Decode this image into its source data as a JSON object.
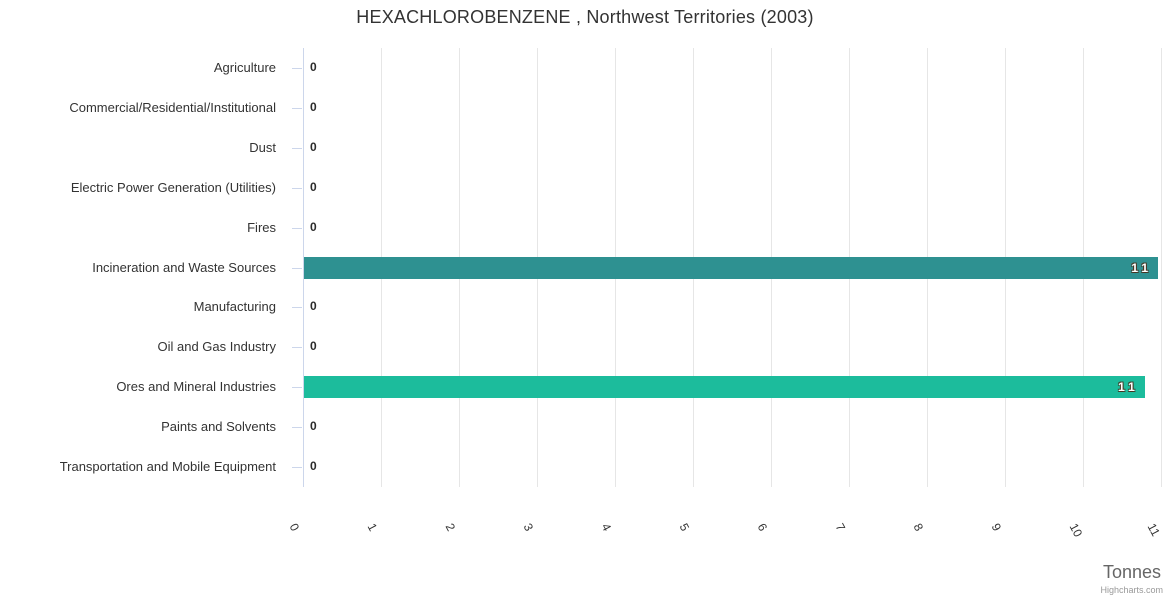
{
  "credit": "Highcharts.com",
  "chart_data": {
    "type": "bar",
    "title": "HEXACHLOROBENZENE , Northwest Territories (2003)",
    "orientation": "horizontal",
    "legend": "none",
    "grid": true,
    "categories": [
      "Agriculture",
      "Commercial/Residential/Institutional",
      "Dust",
      "Electric Power Generation (Utilities)",
      "Fires",
      "Incineration and Waste Sources",
      "Manufacturing",
      "Oil and Gas Industry",
      "Ores and Mineral Industries",
      "Paints and Solvents",
      "Transportation and Mobile Equipment"
    ],
    "values": [
      0,
      0,
      0,
      0,
      0,
      11,
      0,
      0,
      11,
      0,
      0
    ],
    "value_labels": [
      "0",
      "0",
      "0",
      "0",
      "0",
      "11",
      "0",
      "0",
      "11",
      "0",
      "0"
    ],
    "values_estimated_from_bar_length": [
      0,
      0,
      0,
      0,
      0,
      10.95,
      0,
      0,
      10.78,
      0,
      0
    ],
    "point_colors": [
      "",
      "",
      "",
      "",
      "",
      "#2E9191",
      "",
      "",
      "#1CBC9C",
      "",
      ""
    ],
    "xlabel": "Tonnes",
    "ylabel": "",
    "value_axis": {
      "min": 0,
      "max": 11,
      "tick_labels": [
        "0",
        "1",
        "2",
        "3",
        "4",
        "5",
        "6",
        "7",
        "8",
        "9",
        "10",
        "11"
      ]
    },
    "style_colors": {
      "title": "#333333",
      "category_label": "#333333",
      "axis_line": "#ccd6eb",
      "gridline": "#e6e6e6",
      "x_tick_label": "#333333",
      "axis_title": "#666666",
      "credit": "#999999",
      "data_label_on_bar": "#ffffff",
      "data_label_zero": "#2b2b2b"
    }
  }
}
